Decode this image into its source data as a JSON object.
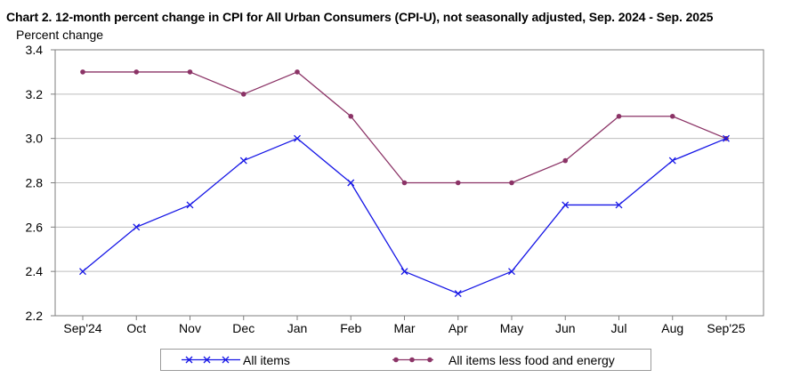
{
  "title": "Chart 2. 12-month percent change in CPI for All Urban Consumers (CPI-U), not seasonally adjusted, Sep. 2024 - Sep. 2025",
  "chart_data": {
    "type": "line",
    "title": "Chart 2. 12-month percent change in CPI for All Urban Consumers (CPI-U), not seasonally adjusted, Sep. 2024 - Sep. 2025",
    "ylabel": "Percent change",
    "xlabel": "",
    "categories": [
      "Sep'24",
      "Oct",
      "Nov",
      "Dec",
      "Jan",
      "Feb",
      "Mar",
      "Apr",
      "May",
      "Jun",
      "Jul",
      "Aug",
      "Sep'25"
    ],
    "ylim": [
      2.2,
      3.4
    ],
    "yticks": [
      "2.2",
      "2.4",
      "2.6",
      "2.8",
      "3.0",
      "3.2",
      "3.4"
    ],
    "grid": true,
    "legend_position": "bottom",
    "series": [
      {
        "name": "All items",
        "color": "#1515e6",
        "marker": "x",
        "values": [
          2.4,
          2.6,
          2.7,
          2.9,
          3.0,
          2.8,
          2.4,
          2.3,
          2.4,
          2.7,
          2.7,
          2.9,
          3.0
        ]
      },
      {
        "name": "All items less food and energy",
        "color": "#8b3366",
        "marker": "circle",
        "values": [
          3.3,
          3.3,
          3.3,
          3.2,
          3.3,
          3.1,
          2.8,
          2.8,
          2.8,
          2.9,
          3.1,
          3.1,
          3.0
        ]
      }
    ]
  }
}
